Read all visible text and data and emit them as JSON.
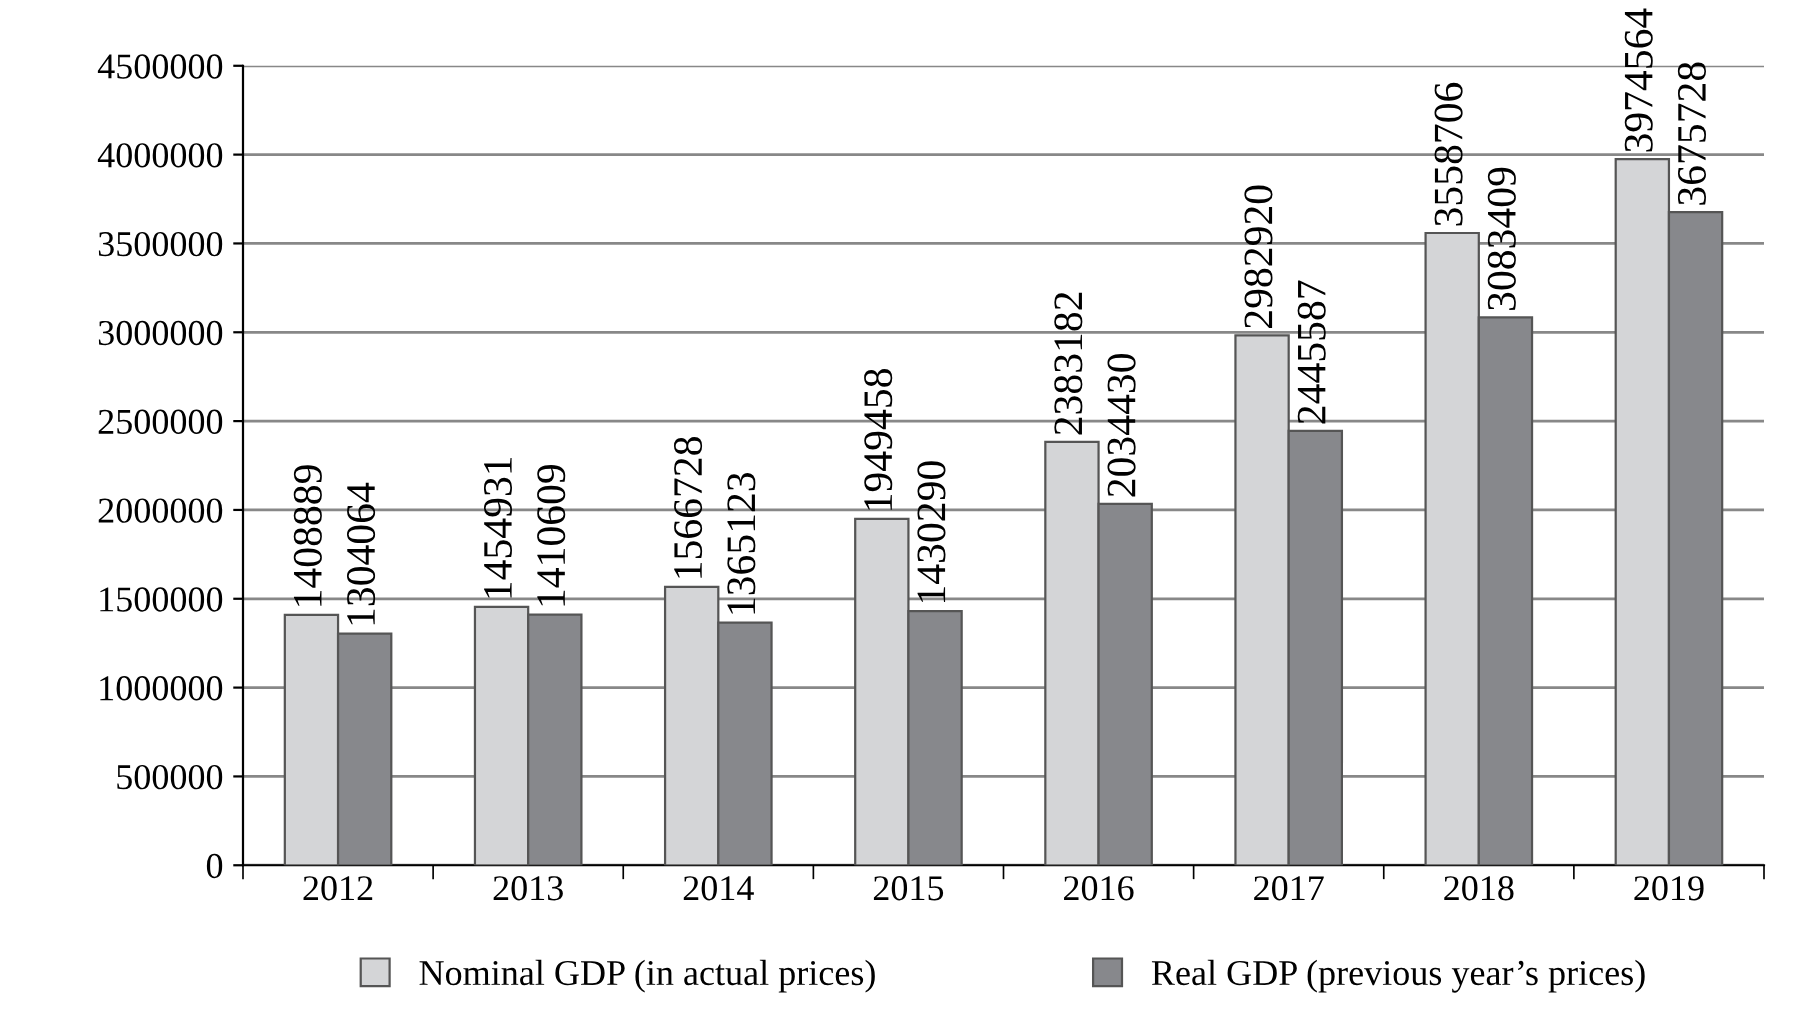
{
  "chart_data": {
    "type": "bar",
    "categories": [
      "2012",
      "2013",
      "2014",
      "2015",
      "2016",
      "2017",
      "2018",
      "2019"
    ],
    "series": [
      {
        "name": "Nominal GDP (in actual prices)",
        "color": "#d4d5d7",
        "values": [
          1408889,
          1454931,
          1566728,
          1949458,
          2383182,
          2982920,
          3558706,
          3974564
        ]
      },
      {
        "name": "Real GDP (previous year’s prices)",
        "color": "#87888c",
        "values": [
          1304064,
          1410609,
          1365123,
          1430290,
          2034430,
          2445587,
          3083409,
          3675728
        ]
      }
    ],
    "ylim": [
      0,
      4500000
    ],
    "yticks": [
      0,
      500000,
      1000000,
      1500000,
      2000000,
      2500000,
      3000000,
      3500000,
      4000000,
      4500000
    ],
    "grid": "y",
    "legend": "bottom",
    "data_labels": true
  }
}
